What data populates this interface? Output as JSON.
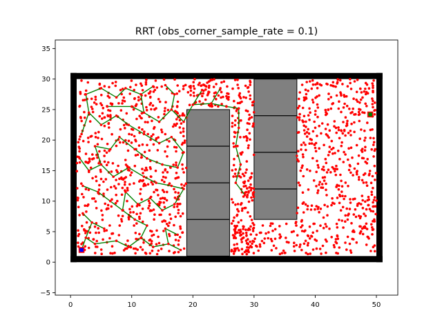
{
  "chart_data": {
    "type": "scatter",
    "title": "RRT (obs_corner_sample_rate = 0.1)",
    "xlabel": "",
    "ylabel": "",
    "xlim": [
      -2.5,
      53.5
    ],
    "ylim": [
      -5.4,
      36.4
    ],
    "x_ticks": [
      0,
      10,
      20,
      30,
      40,
      50
    ],
    "y_ticks": [
      -5,
      0,
      5,
      10,
      15,
      20,
      25,
      30,
      35
    ],
    "x_tick_labels": [
      "0",
      "10",
      "20",
      "30",
      "40",
      "50"
    ],
    "y_tick_labels": [
      "−5",
      "0",
      "5",
      "10",
      "15",
      "20",
      "25",
      "30",
      "35"
    ],
    "grid": false,
    "legend": "none",
    "colors": {
      "samples": "#ff0000",
      "tree": "#008000",
      "boundary": "#000000",
      "obstacle": "#808080",
      "start": "#0000ff",
      "goal": "#008000"
    },
    "boundary": {
      "x": [
        0,
        51
      ],
      "y": [
        0,
        31
      ],
      "thickness": 1
    },
    "obstacles": [
      {
        "x": [
          19,
          26
        ],
        "y": [
          1,
          25
        ],
        "dividers_y": [
          7,
          13,
          19
        ]
      },
      {
        "x": [
          30,
          37
        ],
        "y": [
          7,
          30
        ],
        "dividers_y": [
          12,
          18,
          24
        ]
      }
    ],
    "start": [
      1.8,
      2.0
    ],
    "goal": [
      49.0,
      24.2
    ],
    "sample_regions": [
      {
        "x": [
          1.0,
          19.0
        ],
        "y": [
          1.3,
          30.0
        ],
        "count": 620
      },
      {
        "x": [
          26.3,
          30.0
        ],
        "y": [
          1.3,
          30.0
        ],
        "count": 190
      },
      {
        "x": [
          26.3,
          50.0
        ],
        "y": [
          1.3,
          6.6
        ],
        "count": 180
      },
      {
        "x": [
          37.0,
          50.0
        ],
        "y": [
          6.6,
          30.0
        ],
        "count": 430
      },
      {
        "x": [
          19.0,
          26.0
        ],
        "y": [
          25.5,
          30.0
        ],
        "count": 75
      }
    ],
    "tree_nodes": [
      [
        1.8,
        2.0
      ],
      [
        2.5,
        4.0
      ],
      [
        4.0,
        3.0
      ],
      [
        3.5,
        6.5
      ],
      [
        2.0,
        8.0
      ],
      [
        5.5,
        5.5
      ],
      [
        7.5,
        3.5
      ],
      [
        9.5,
        2.5
      ],
      [
        11.5,
        4.0
      ],
      [
        13.5,
        2.5
      ],
      [
        16.0,
        3.0
      ],
      [
        15.5,
        5.5
      ],
      [
        17.5,
        4.5
      ],
      [
        18.0,
        2.0
      ],
      [
        12.5,
        6.0
      ],
      [
        10.5,
        7.0
      ],
      [
        8.5,
        8.5
      ],
      [
        6.5,
        10.0
      ],
      [
        4.5,
        11.5
      ],
      [
        2.0,
        12.5
      ],
      [
        9.0,
        11.5
      ],
      [
        11.0,
        9.5
      ],
      [
        13.0,
        10.5
      ],
      [
        15.0,
        8.5
      ],
      [
        17.0,
        9.5
      ],
      [
        18.5,
        12.0
      ],
      [
        16.5,
        12.5
      ],
      [
        14.0,
        13.0
      ],
      [
        12.0,
        14.0
      ],
      [
        9.5,
        15.5
      ],
      [
        7.0,
        14.0
      ],
      [
        5.0,
        16.0
      ],
      [
        3.0,
        15.0
      ],
      [
        1.5,
        17.0
      ],
      [
        4.0,
        19.0
      ],
      [
        6.5,
        18.5
      ],
      [
        8.0,
        20.5
      ],
      [
        10.5,
        18.5
      ],
      [
        12.5,
        17.0
      ],
      [
        15.0,
        16.0
      ],
      [
        17.5,
        15.5
      ],
      [
        18.5,
        18.0
      ],
      [
        16.5,
        20.5
      ],
      [
        14.5,
        19.5
      ],
      [
        12.0,
        21.0
      ],
      [
        9.5,
        22.5
      ],
      [
        7.5,
        24.0
      ],
      [
        5.0,
        22.5
      ],
      [
        3.0,
        24.5
      ],
      [
        1.8,
        21.0
      ],
      [
        2.5,
        27.5
      ],
      [
        5.0,
        28.5
      ],
      [
        7.5,
        27.0
      ],
      [
        9.0,
        28.5
      ],
      [
        11.5,
        27.5
      ],
      [
        13.5,
        28.8
      ],
      [
        12.0,
        24.5
      ],
      [
        14.5,
        23.0
      ],
      [
        16.5,
        25.0
      ],
      [
        17.0,
        27.5
      ],
      [
        15.5,
        29.0
      ],
      [
        18.5,
        23.0
      ],
      [
        10.0,
        25.5
      ],
      [
        6.0,
        25.5
      ],
      [
        20.0,
        25.8
      ],
      [
        23.0,
        26.0
      ],
      [
        25.5,
        25.5
      ],
      [
        27.5,
        25.2
      ],
      [
        24.5,
        28.5
      ],
      [
        21.5,
        28.2
      ],
      [
        27.5,
        22.0
      ],
      [
        27.0,
        19.0
      ],
      [
        27.8,
        16.0
      ],
      [
        27.0,
        13.0
      ],
      [
        28.5,
        11.0
      ]
    ],
    "tree_edges": [
      [
        0,
        1
      ],
      [
        1,
        2
      ],
      [
        1,
        3
      ],
      [
        3,
        4
      ],
      [
        3,
        5
      ],
      [
        2,
        6
      ],
      [
        6,
        7
      ],
      [
        7,
        8
      ],
      [
        8,
        9
      ],
      [
        9,
        10
      ],
      [
        10,
        11
      ],
      [
        11,
        12
      ],
      [
        10,
        13
      ],
      [
        8,
        14
      ],
      [
        14,
        15
      ],
      [
        15,
        16
      ],
      [
        16,
        17
      ],
      [
        17,
        18
      ],
      [
        18,
        19
      ],
      [
        16,
        20
      ],
      [
        20,
        21
      ],
      [
        21,
        22
      ],
      [
        22,
        23
      ],
      [
        23,
        24
      ],
      [
        24,
        25
      ],
      [
        25,
        26
      ],
      [
        26,
        27
      ],
      [
        27,
        28
      ],
      [
        28,
        29
      ],
      [
        29,
        30
      ],
      [
        30,
        31
      ],
      [
        31,
        32
      ],
      [
        32,
        33
      ],
      [
        31,
        34
      ],
      [
        34,
        35
      ],
      [
        35,
        36
      ],
      [
        36,
        37
      ],
      [
        37,
        38
      ],
      [
        38,
        39
      ],
      [
        39,
        40
      ],
      [
        40,
        41
      ],
      [
        41,
        42
      ],
      [
        42,
        43
      ],
      [
        43,
        44
      ],
      [
        44,
        45
      ],
      [
        45,
        46
      ],
      [
        46,
        47
      ],
      [
        47,
        48
      ],
      [
        48,
        49
      ],
      [
        48,
        50
      ],
      [
        50,
        51
      ],
      [
        51,
        52
      ],
      [
        52,
        53
      ],
      [
        53,
        54
      ],
      [
        54,
        55
      ],
      [
        54,
        56
      ],
      [
        56,
        57
      ],
      [
        57,
        58
      ],
      [
        58,
        59
      ],
      [
        59,
        60
      ],
      [
        58,
        61
      ],
      [
        56,
        62
      ],
      [
        62,
        63
      ],
      [
        61,
        64
      ],
      [
        64,
        65
      ],
      [
        65,
        66
      ],
      [
        66,
        67
      ],
      [
        65,
        68
      ],
      [
        64,
        69
      ],
      [
        67,
        70
      ],
      [
        70,
        71
      ],
      [
        71,
        72
      ],
      [
        72,
        73
      ],
      [
        73,
        74
      ]
    ]
  }
}
